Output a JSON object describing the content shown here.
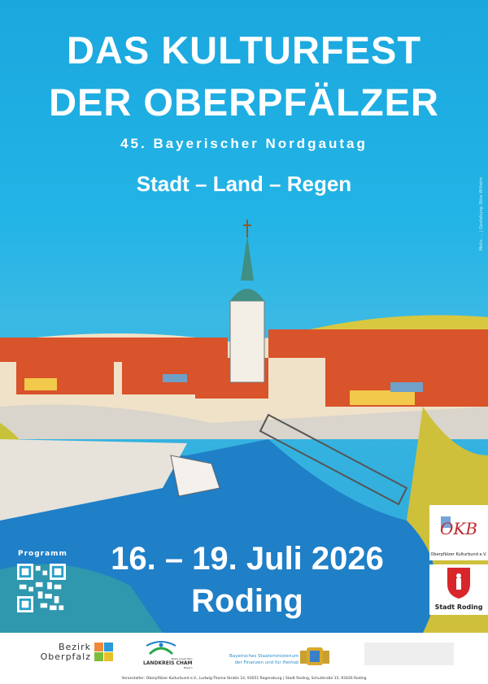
{
  "poster": {
    "title_line1": "DAS KULTURFEST",
    "title_line2": "DER OBERPFÄLZER",
    "subtitle": "45. Bayerischer Nordgautag",
    "motto": "Stadt – Land – Regen",
    "dates": "16. – 19. Juli 2026",
    "place": "Roding",
    "credit": "Motiv: … | Gestaltung: Büro Wilhelm",
    "program_label": "Programm"
  },
  "badges": {
    "okb_caption": "Oberpfälzer Kulturbund e.V.",
    "okb_letters": "OKB",
    "roding_caption": "Stadt Roding"
  },
  "footer": {
    "bezirk_line1": "Bezirk",
    "bezirk_line2": "Oberpfalz",
    "cham_tag": "Beste Aussichten",
    "cham_name": "LANDKREIS CHAM",
    "cham_sub": "Bayern",
    "ministry_line1": "Bayerisches Staatsministerium",
    "ministry_line2": "der Finanzen und für Heimat",
    "organizer": "Veranstalter: Oberpfälzer Kulturbund e.V., Ludwig-Thoma-Straße 14, 93051 Regensburg | Stadt Roding, Schulstraße 15, 93426 Roding"
  },
  "colors": {
    "sky": "#1aa7de",
    "roofs": "#d9532b",
    "river": "#1f7fc7",
    "text": "#ffffff"
  }
}
